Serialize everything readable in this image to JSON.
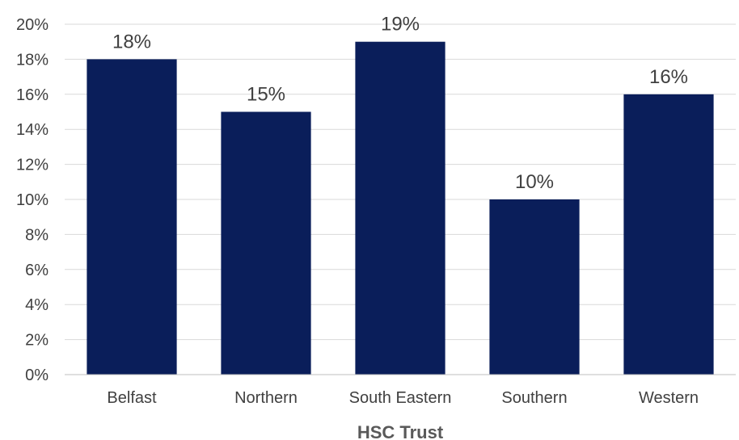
{
  "chart_data": {
    "type": "bar",
    "title": "",
    "xlabel": "HSC Trust",
    "ylabel": "",
    "categories": [
      "Belfast",
      "Northern",
      "South Eastern",
      "Southern",
      "Western"
    ],
    "values": [
      18,
      15,
      19,
      10,
      16
    ],
    "value_labels": [
      "18%",
      "15%",
      "19%",
      "10%",
      "16%"
    ],
    "ylim": [
      0,
      20
    ],
    "yticks": [
      0,
      2,
      4,
      6,
      8,
      10,
      12,
      14,
      16,
      18,
      20
    ],
    "ytick_labels": [
      "0%",
      "2%",
      "4%",
      "6%",
      "8%",
      "10%",
      "12%",
      "14%",
      "16%",
      "18%",
      "20%"
    ],
    "grid": true,
    "legend": "none",
    "colors": {
      "bar": "#0a1e5a",
      "grid": "#d9d9d9",
      "axis": "#bfbfbf"
    }
  }
}
